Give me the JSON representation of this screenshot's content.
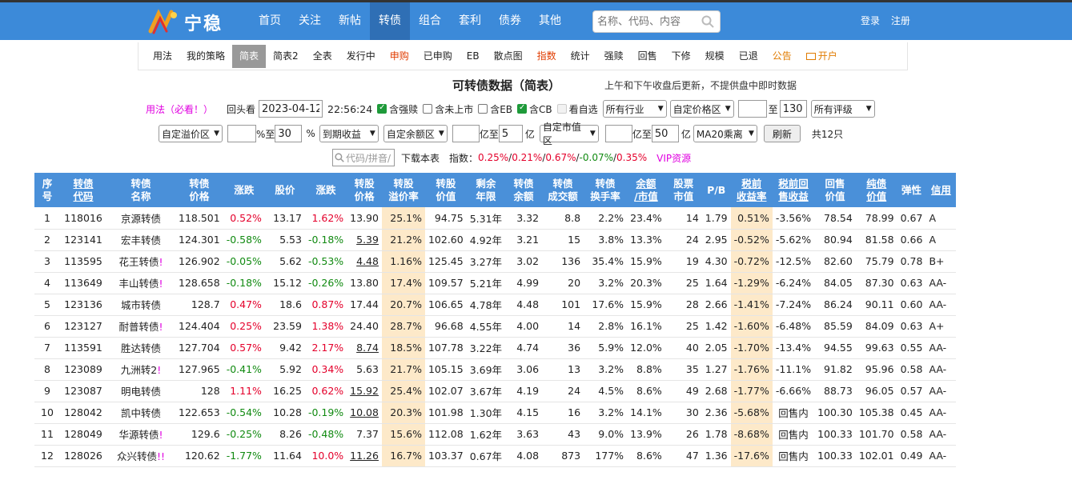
{
  "header": {
    "logo_text": "宁稳",
    "nav": [
      "首页",
      "关注",
      "新帖",
      "转债",
      "组合",
      "套利",
      "债券",
      "其他"
    ],
    "active_nav": 3,
    "search_placeholder": "名称、代码、内容",
    "login": "登录",
    "register": "注册"
  },
  "subnav": {
    "items": [
      "用法",
      "我的策略",
      "简表",
      "简表2",
      "全表",
      "发行中",
      "申购",
      "已申购",
      "EB",
      "散点图",
      "指数",
      "统计",
      "强赎",
      "回售",
      "下修",
      "规模",
      "已退",
      "公告",
      "开户"
    ],
    "active": 2,
    "red_items": [
      6,
      10
    ],
    "orange_items": [
      17,
      18
    ]
  },
  "title": "可转债数据（简表）",
  "title_note": "上午和下午收盘后更新，不提供盘中即时数据",
  "filters": {
    "usage_link": "用法（必看！）",
    "lookback_label": "回头看",
    "date": "2023-04-12",
    "time": "22:56:24",
    "checks": [
      {
        "label": "含强赎",
        "checked": true
      },
      {
        "label": "含未上市",
        "checked": false
      },
      {
        "label": "含EB",
        "checked": false
      },
      {
        "label": "含CB",
        "checked": true
      },
      {
        "label": "看自选",
        "checked": false
      }
    ],
    "industry": "所有行业",
    "price_custom": "自定价格区",
    "price_min": "",
    "price_to": "至",
    "price_max": "130",
    "rating": "所有评级",
    "premium_custom": "自定溢价区",
    "premium_min": "",
    "pct_to": "%至",
    "premium_max": "30",
    "pct": "%",
    "yield_select": "到期收益",
    "balance_custom": "自定余额区",
    "balance_min": "",
    "yi_to": "亿至",
    "balance_max": "5",
    "yi": "亿",
    "mcap_custom": "自定市值区",
    "mcap_min": "",
    "mcap_max": "50",
    "ma_select": "MA20乘离",
    "refresh": "刷新",
    "total": "共12只",
    "code_search_placeholder": "代码/拼音/",
    "download": "下载本表",
    "index_label": "指数：",
    "index_values": [
      {
        "v": "0.25%",
        "c": "red"
      },
      {
        "v": "0.21%",
        "c": "red"
      },
      {
        "v": "0.67%",
        "c": "red"
      },
      {
        "v": "-0.07%",
        "c": "green"
      },
      {
        "v": "0.35%",
        "c": "red"
      }
    ],
    "vip": "VIP资源"
  },
  "table": {
    "headers": [
      [
        "序",
        "号"
      ],
      [
        "转债",
        "代码"
      ],
      [
        "转债",
        "名称"
      ],
      [
        "转债",
        "价格"
      ],
      [
        "涨跌",
        ""
      ],
      [
        "股价",
        ""
      ],
      [
        "涨跌",
        ""
      ],
      [
        "转股",
        "价格"
      ],
      [
        "转股",
        "溢价率"
      ],
      [
        "转股",
        "价值"
      ],
      [
        "剩余",
        "年限"
      ],
      [
        "转债",
        "余额"
      ],
      [
        "转债",
        "成交额"
      ],
      [
        "转债",
        "换手率"
      ],
      [
        "余额",
        "/市值"
      ],
      [
        "股票",
        "市值"
      ],
      [
        "P/B",
        ""
      ],
      [
        "税前",
        "收益率"
      ],
      [
        "税前回",
        "售收益"
      ],
      [
        "回售",
        "价值"
      ],
      [
        "纯债",
        "价值"
      ],
      [
        "弹性",
        ""
      ],
      [
        "信用",
        ""
      ]
    ],
    "rows": [
      [
        "1",
        "118016",
        "京源转债",
        "",
        "118.501",
        "0.52%",
        "13.17",
        "1.62%",
        "13.90",
        "25.1%",
        "94.75",
        "5.31年",
        "3.32",
        "8.8",
        "2.2%",
        "23.4%",
        "14",
        "1.79",
        "0.51%",
        "-3.56%",
        "78.54",
        "78.99",
        "0.67",
        "A"
      ],
      [
        "2",
        "123141",
        "宏丰转债",
        "",
        "124.301",
        "-0.58%",
        "5.53",
        "-0.18%",
        "5.39",
        "21.2%",
        "102.60",
        "4.92年",
        "3.21",
        "15",
        "3.8%",
        "13.3%",
        "24",
        "2.95",
        "-0.52%",
        "-5.62%",
        "80.94",
        "81.58",
        "0.66",
        "A"
      ],
      [
        "3",
        "113595",
        "花王转债",
        "!",
        "126.902",
        "-0.05%",
        "5.62",
        "-0.53%",
        "4.48",
        "1.16%",
        "125.45",
        "3.27年",
        "3.02",
        "136",
        "35.4%",
        "15.9%",
        "19",
        "4.30",
        "-0.72%",
        "-12.5%",
        "82.60",
        "75.79",
        "0.78",
        "B+"
      ],
      [
        "4",
        "113649",
        "丰山转债",
        "!",
        "128.658",
        "-0.18%",
        "15.12",
        "-0.26%",
        "13.80",
        "17.4%",
        "109.57",
        "5.21年",
        "4.99",
        "20",
        "3.2%",
        "20.3%",
        "25",
        "1.64",
        "-1.29%",
        "-6.24%",
        "84.05",
        "87.30",
        "0.63",
        "AA-"
      ],
      [
        "5",
        "123136",
        "城市转债",
        "",
        "128.7",
        "0.47%",
        "18.6",
        "0.87%",
        "17.44",
        "20.7%",
        "106.65",
        "4.78年",
        "4.48",
        "101",
        "17.6%",
        "15.9%",
        "28",
        "2.66",
        "-1.41%",
        "-7.24%",
        "86.24",
        "90.11",
        "0.60",
        "AA-"
      ],
      [
        "6",
        "123127",
        "耐普转债",
        "!",
        "124.404",
        "0.25%",
        "23.59",
        "1.38%",
        "24.40",
        "28.7%",
        "96.68",
        "4.55年",
        "4.00",
        "14",
        "2.8%",
        "16.1%",
        "25",
        "1.42",
        "-1.60%",
        "-6.48%",
        "85.59",
        "84.09",
        "0.63",
        "A+"
      ],
      [
        "7",
        "113591",
        "胜达转债",
        "",
        "127.704",
        "0.57%",
        "9.42",
        "2.17%",
        "8.74",
        "18.5%",
        "107.78",
        "3.22年",
        "4.74",
        "36",
        "5.9%",
        "12.0%",
        "40",
        "2.05",
        "-1.70%",
        "-13.4%",
        "94.55",
        "99.63",
        "0.55",
        "AA-"
      ],
      [
        "8",
        "123089",
        "九洲转2",
        "!",
        "127.965",
        "-0.41%",
        "5.92",
        "0.34%",
        "5.63",
        "21.7%",
        "105.15",
        "3.69年",
        "3.06",
        "13",
        "3.2%",
        "8.8%",
        "35",
        "1.27",
        "-1.76%",
        "-11.1%",
        "91.82",
        "95.96",
        "0.58",
        "AA-"
      ],
      [
        "9",
        "123087",
        "明电转债",
        "",
        "128",
        "1.11%",
        "16.25",
        "0.62%",
        "15.92",
        "25.4%",
        "102.07",
        "3.67年",
        "4.19",
        "24",
        "4.5%",
        "8.6%",
        "49",
        "2.68",
        "-1.77%",
        "-6.66%",
        "88.73",
        "96.05",
        "0.57",
        "AA-"
      ],
      [
        "10",
        "128042",
        "凯中转债",
        "",
        "122.653",
        "-0.54%",
        "10.28",
        "-0.19%",
        "10.08",
        "20.3%",
        "101.98",
        "1.30年",
        "4.15",
        "16",
        "3.2%",
        "14.1%",
        "30",
        "2.36",
        "-5.68%",
        "回售内",
        "100.30",
        "105.38",
        "0.45",
        "AA-"
      ],
      [
        "11",
        "128049",
        "华源转债",
        "!",
        "129.6",
        "-0.25%",
        "8.26",
        "-0.48%",
        "7.37",
        "15.6%",
        "112.08",
        "1.62年",
        "3.63",
        "43",
        "9.0%",
        "13.9%",
        "26",
        "1.78",
        "-8.68%",
        "回售内",
        "100.33",
        "101.70",
        "0.58",
        "AA-"
      ],
      [
        "12",
        "128026",
        "众兴转债",
        "!!",
        "120.62",
        "-1.77%",
        "11.64",
        "10.0%",
        "11.26",
        "16.7%",
        "103.37",
        "0.67年",
        "4.08",
        "873",
        "177%",
        "8.6%",
        "47",
        "1.36",
        "-17.6%",
        "回售内",
        "100.33",
        "102.01",
        "0.49",
        "AA-"
      ]
    ],
    "underlined_conv_price_rows": [
      1,
      2,
      6,
      8,
      9,
      11
    ]
  }
}
